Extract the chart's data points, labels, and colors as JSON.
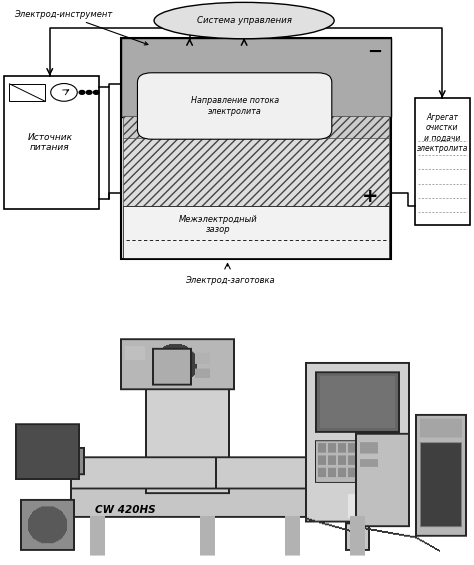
{
  "bg_color": "#ffffff",
  "label_sistema": "Система управления",
  "label_elektrod_instr": "Электрод-инструмент",
  "label_istochnik": "Источник\nпитания",
  "label_napravlenie": "Направление потока\nэлектролита",
  "label_mezhelectrodny": "Межэлектродный\nзазор",
  "label_agregat": "Агрегат\nочистки\nи подачи\nэлектролита",
  "label_elektrod_zag": "Электрод-заготовка",
  "plus_sign": "+",
  "minus_sign": "−",
  "machine_label": "CW 420HS",
  "fig_width": 4.74,
  "fig_height": 5.65,
  "gray_chamber": "#c8c8c8",
  "gray_dark": "#999999",
  "gray_light": "#e8e8e8",
  "gray_mid": "#b4b4b4",
  "white": "#ffffff",
  "black": "#111111"
}
